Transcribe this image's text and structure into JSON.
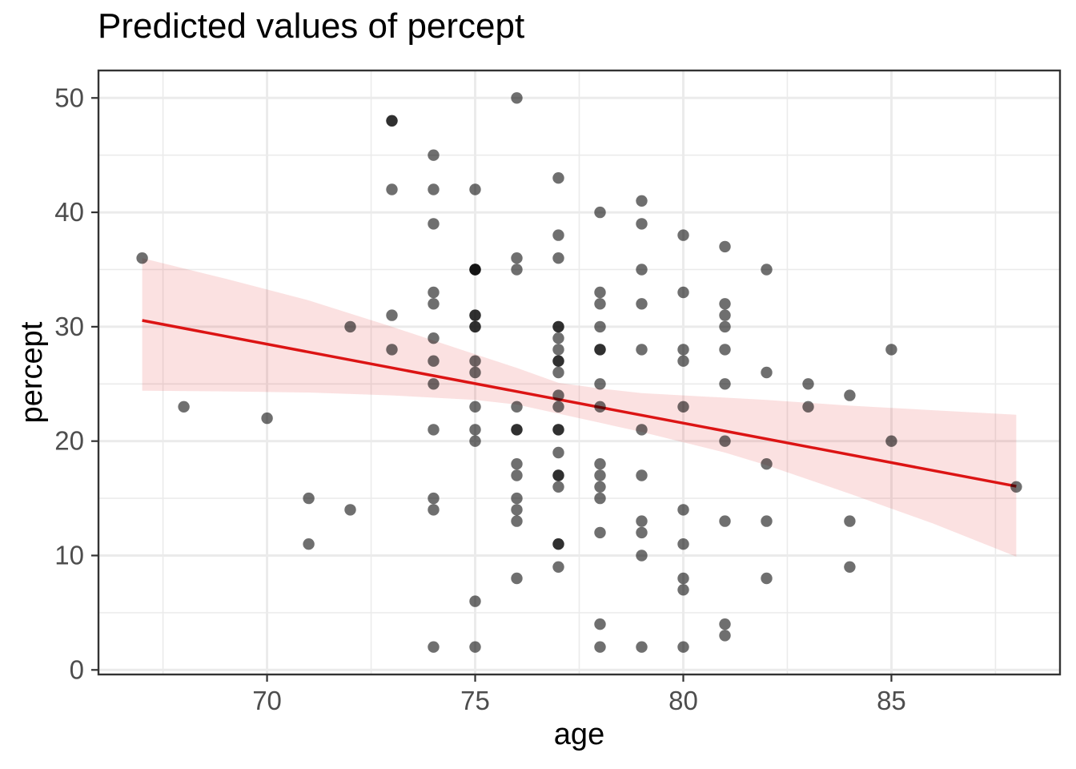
{
  "header": {
    "title": "Predicted values of percept"
  },
  "chart_data": {
    "type": "scatter",
    "title": "Predicted values of percept",
    "xlabel": "age",
    "ylabel": "percept",
    "x_ticks": [
      70,
      75,
      80,
      85
    ],
    "x_minor_ticks": [
      67.5,
      72.5,
      77.5,
      82.5,
      87.5
    ],
    "y_ticks": [
      0,
      10,
      20,
      30,
      40,
      50
    ],
    "y_minor_ticks": [
      5,
      15,
      25,
      35,
      45
    ],
    "xlim": [
      65.95,
      89.05
    ],
    "ylim": [
      -0.4,
      52.4
    ],
    "grid": true,
    "legend": "none",
    "point_radius": 7.2,
    "points": [
      [
        67,
        36,
        1
      ],
      [
        68,
        23,
        1
      ],
      [
        70,
        22,
        1
      ],
      [
        71,
        15,
        1
      ],
      [
        71,
        11,
        1
      ],
      [
        72,
        30,
        1
      ],
      [
        72,
        14,
        1
      ],
      [
        73,
        48,
        2
      ],
      [
        73,
        42,
        1
      ],
      [
        73,
        31,
        1
      ],
      [
        73,
        28,
        1
      ],
      [
        74,
        45,
        1
      ],
      [
        74,
        42,
        1
      ],
      [
        74,
        39,
        1
      ],
      [
        74,
        33,
        1
      ],
      [
        74,
        32,
        1
      ],
      [
        74,
        29,
        1
      ],
      [
        74,
        27,
        1
      ],
      [
        74,
        25,
        1
      ],
      [
        74,
        21,
        1
      ],
      [
        74,
        15,
        1
      ],
      [
        74,
        14,
        1
      ],
      [
        74,
        2,
        1
      ],
      [
        75,
        42,
        1
      ],
      [
        75,
        35,
        3
      ],
      [
        75,
        31,
        2
      ],
      [
        75,
        30,
        2
      ],
      [
        75,
        27,
        1
      ],
      [
        75,
        26,
        1
      ],
      [
        75,
        23,
        1
      ],
      [
        75,
        21,
        1
      ],
      [
        75,
        20,
        1
      ],
      [
        75,
        6,
        1
      ],
      [
        75,
        2,
        1
      ],
      [
        76,
        50,
        1
      ],
      [
        76,
        36,
        1
      ],
      [
        76,
        35,
        1
      ],
      [
        76,
        23,
        1
      ],
      [
        76,
        21,
        2
      ],
      [
        76,
        18,
        1
      ],
      [
        76,
        17,
        1
      ],
      [
        76,
        15,
        1
      ],
      [
        76,
        14,
        1
      ],
      [
        76,
        13,
        1
      ],
      [
        76,
        8,
        1
      ],
      [
        77,
        43,
        1
      ],
      [
        77,
        38,
        1
      ],
      [
        77,
        36,
        1
      ],
      [
        77,
        30,
        2
      ],
      [
        77,
        29,
        1
      ],
      [
        77,
        28,
        1
      ],
      [
        77,
        27,
        2
      ],
      [
        77,
        26,
        1
      ],
      [
        77,
        24,
        1
      ],
      [
        77,
        23,
        1
      ],
      [
        77,
        21,
        2
      ],
      [
        77,
        19,
        1
      ],
      [
        77,
        17,
        2
      ],
      [
        77,
        16,
        1
      ],
      [
        77,
        11,
        2
      ],
      [
        77,
        9,
        1
      ],
      [
        78,
        40,
        1
      ],
      [
        78,
        33,
        1
      ],
      [
        78,
        32,
        1
      ],
      [
        78,
        30,
        1
      ],
      [
        78,
        28,
        2
      ],
      [
        78,
        25,
        1
      ],
      [
        78,
        23,
        1
      ],
      [
        78,
        18,
        1
      ],
      [
        78,
        17,
        1
      ],
      [
        78,
        16,
        1
      ],
      [
        78,
        15,
        1
      ],
      [
        78,
        12,
        1
      ],
      [
        78,
        4,
        1
      ],
      [
        78,
        2,
        1
      ],
      [
        79,
        41,
        1
      ],
      [
        79,
        39,
        1
      ],
      [
        79,
        35,
        1
      ],
      [
        79,
        32,
        1
      ],
      [
        79,
        28,
        1
      ],
      [
        79,
        21,
        1
      ],
      [
        79,
        17,
        1
      ],
      [
        79,
        13,
        1
      ],
      [
        79,
        12,
        1
      ],
      [
        79,
        10,
        1
      ],
      [
        79,
        2,
        1
      ],
      [
        80,
        38,
        1
      ],
      [
        80,
        33,
        1
      ],
      [
        80,
        28,
        1
      ],
      [
        80,
        27,
        1
      ],
      [
        80,
        23,
        1
      ],
      [
        80,
        14,
        1
      ],
      [
        80,
        11,
        1
      ],
      [
        80,
        8,
        1
      ],
      [
        80,
        7,
        1
      ],
      [
        80,
        2,
        1
      ],
      [
        81,
        37,
        1
      ],
      [
        81,
        32,
        1
      ],
      [
        81,
        31,
        1
      ],
      [
        81,
        30,
        1
      ],
      [
        81,
        28,
        1
      ],
      [
        81,
        25,
        1
      ],
      [
        81,
        20,
        1
      ],
      [
        81,
        13,
        1
      ],
      [
        81,
        4,
        1
      ],
      [
        81,
        3,
        1
      ],
      [
        82,
        35,
        1
      ],
      [
        82,
        26,
        1
      ],
      [
        82,
        18,
        1
      ],
      [
        82,
        13,
        1
      ],
      [
        82,
        8,
        1
      ],
      [
        83,
        25,
        1
      ],
      [
        83,
        23,
        1
      ],
      [
        84,
        24,
        1
      ],
      [
        84,
        13,
        1
      ],
      [
        84,
        9,
        1
      ],
      [
        85,
        28,
        1
      ],
      [
        85,
        20,
        1
      ],
      [
        88,
        16,
        1
      ]
    ],
    "regression_line": {
      "x": [
        67,
        88
      ],
      "y": [
        30.55,
        16.05
      ]
    },
    "ci_ribbon": {
      "ages": [
        67,
        69,
        71,
        73,
        75,
        76,
        77,
        78,
        79,
        80,
        81,
        82,
        84,
        86,
        88
      ],
      "upper": [
        36.0,
        34.2,
        32.3,
        30.0,
        27.6,
        26.4,
        25.1,
        24.6,
        24.2,
        24.0,
        23.8,
        23.6,
        23.1,
        22.7,
        22.3
      ],
      "lower": [
        24.4,
        24.35,
        24.25,
        24.0,
        23.6,
        23.2,
        22.4,
        21.6,
        20.8,
        19.9,
        19.0,
        17.9,
        15.4,
        12.8,
        9.9
      ]
    },
    "colors": {
      "point": "rgba(0,0,0,0.565)",
      "line": "#dc1414",
      "ribbon": "rgba(223,30,30,0.135)",
      "grid_major": "#ebebeb",
      "grid_minor": "#ebebeb",
      "panel_border": "#333333",
      "tick_mark": "#333333",
      "tick_label": "#4d4d4d",
      "text": "#000000"
    }
  }
}
